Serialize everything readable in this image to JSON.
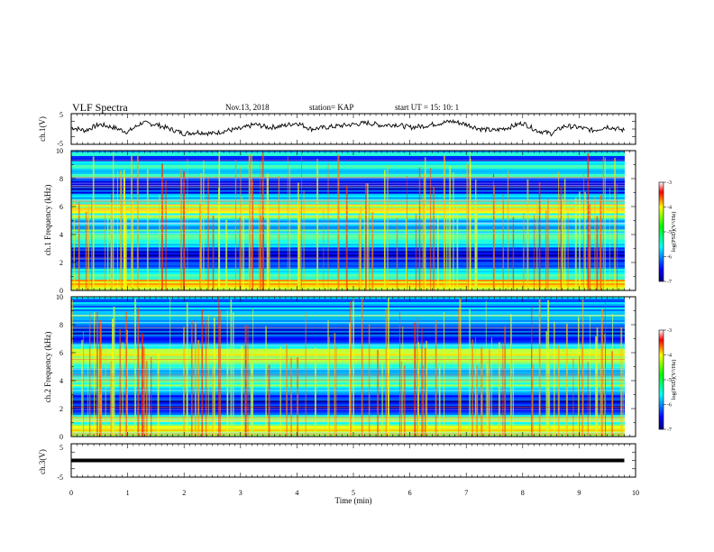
{
  "header": {
    "title": "VLF Spectra",
    "date": "Nov.13, 2018",
    "station": "station= KAP",
    "start": "start  UT =   15: 10: 1"
  },
  "chart_data": [
    {
      "type": "line",
      "name": "ch1-waveform",
      "ylabel": "ch.1(V)",
      "ylim": [
        -5,
        5
      ],
      "yticks": [
        "5",
        "-5"
      ],
      "x": [
        0,
        0.25,
        0.5,
        0.75,
        1,
        1.25,
        1.5,
        1.75,
        2,
        2.25,
        2.5,
        2.75,
        3,
        3.25,
        3.5,
        3.75,
        4,
        4.25,
        4.5,
        4.75,
        5,
        5.25,
        5.5,
        5.75,
        6,
        6.25,
        6.5,
        6.75,
        7,
        7.25,
        7.5,
        7.75,
        8,
        8.25,
        8.5,
        8.75,
        9,
        9.25,
        9.5,
        9.8
      ],
      "values": [
        0.5,
        -0.5,
        1.5,
        0.5,
        -1,
        2,
        1.5,
        0,
        -1.5,
        -1,
        -1.5,
        -0.5,
        0,
        1.5,
        0.5,
        1,
        2,
        0,
        0.5,
        1,
        1.5,
        2,
        1.2,
        1.5,
        0.5,
        1,
        1.8,
        2.5,
        1.5,
        0,
        -0.5,
        0.5,
        2,
        -0.5,
        -1.5,
        1,
        0.5,
        -0.5,
        0.8,
        -0.5
      ]
    },
    {
      "type": "heatmap",
      "name": "ch1-spectrogram",
      "ylabel": "ch.1 Frequency (kHz)",
      "ylim": [
        0,
        10
      ],
      "yticks": [
        "0",
        "2",
        "4",
        "6",
        "8",
        "10"
      ],
      "colorbar": {
        "label": "log(PSD)(V²/Hz)",
        "range": [
          -7,
          -3
        ],
        "ticks": [
          "-3",
          "-4",
          "-5",
          "-6",
          "-7"
        ]
      }
    },
    {
      "type": "heatmap",
      "name": "ch2-spectrogram",
      "ylabel": "ch.2 Frequency (kHz)",
      "ylim": [
        0,
        10
      ],
      "yticks": [
        "0",
        "2",
        "4",
        "6",
        "8",
        "10"
      ],
      "colorbar": {
        "label": "log(PSD)(V²/Hz)",
        "range": [
          -7,
          -3
        ],
        "ticks": [
          "-3",
          "-4",
          "-5",
          "-6",
          "-7"
        ]
      }
    },
    {
      "type": "line",
      "name": "ch3-waveform",
      "ylabel": "ch.3(V)",
      "ylim": [
        -5,
        5
      ],
      "yticks": [
        "5",
        "-5"
      ],
      "x": [
        0,
        9.8
      ],
      "values": [
        0,
        0
      ]
    }
  ],
  "xaxis": {
    "label": "Time  (min)",
    "range": [
      0,
      10
    ],
    "ticks": [
      "0",
      "1",
      "2",
      "3",
      "4",
      "5",
      "6",
      "7",
      "8",
      "9",
      "10"
    ]
  }
}
